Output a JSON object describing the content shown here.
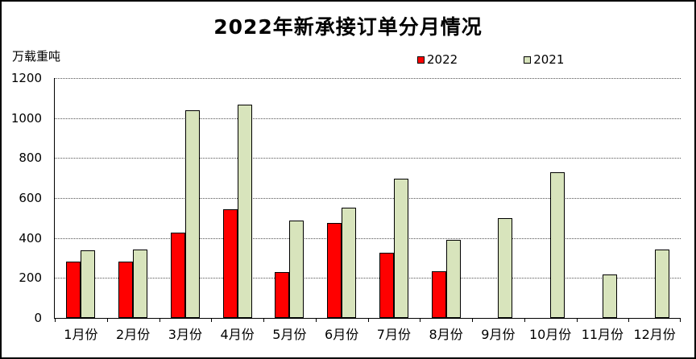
{
  "chart_data": {
    "type": "bar",
    "title": "2022年新承接订单分月情况",
    "unit_label": "万载重吨",
    "categories": [
      "1月份",
      "2月份",
      "3月份",
      "4月份",
      "5月份",
      "6月份",
      "7月份",
      "8月份",
      "9月份",
      "10月份",
      "11月份",
      "12月份"
    ],
    "series": [
      {
        "name": "2022",
        "color": "#FF0000",
        "values": [
          280,
          282,
          428,
          545,
          228,
          477,
          328,
          232,
          null,
          null,
          null,
          null
        ]
      },
      {
        "name": "2021",
        "color": "#D8E4BC",
        "values": [
          338,
          341,
          1037,
          1068,
          488,
          552,
          695,
          389,
          500,
          728,
          217,
          341
        ]
      }
    ],
    "ylim": [
      0,
      1200
    ],
    "yticks": [
      0,
      200,
      400,
      600,
      800,
      1000,
      1200
    ],
    "grid": "horizontal-dotted",
    "legend_position": "top-right",
    "colors": {
      "axis": "#000000",
      "gridline": "#555555",
      "background": "#ffffff"
    }
  }
}
